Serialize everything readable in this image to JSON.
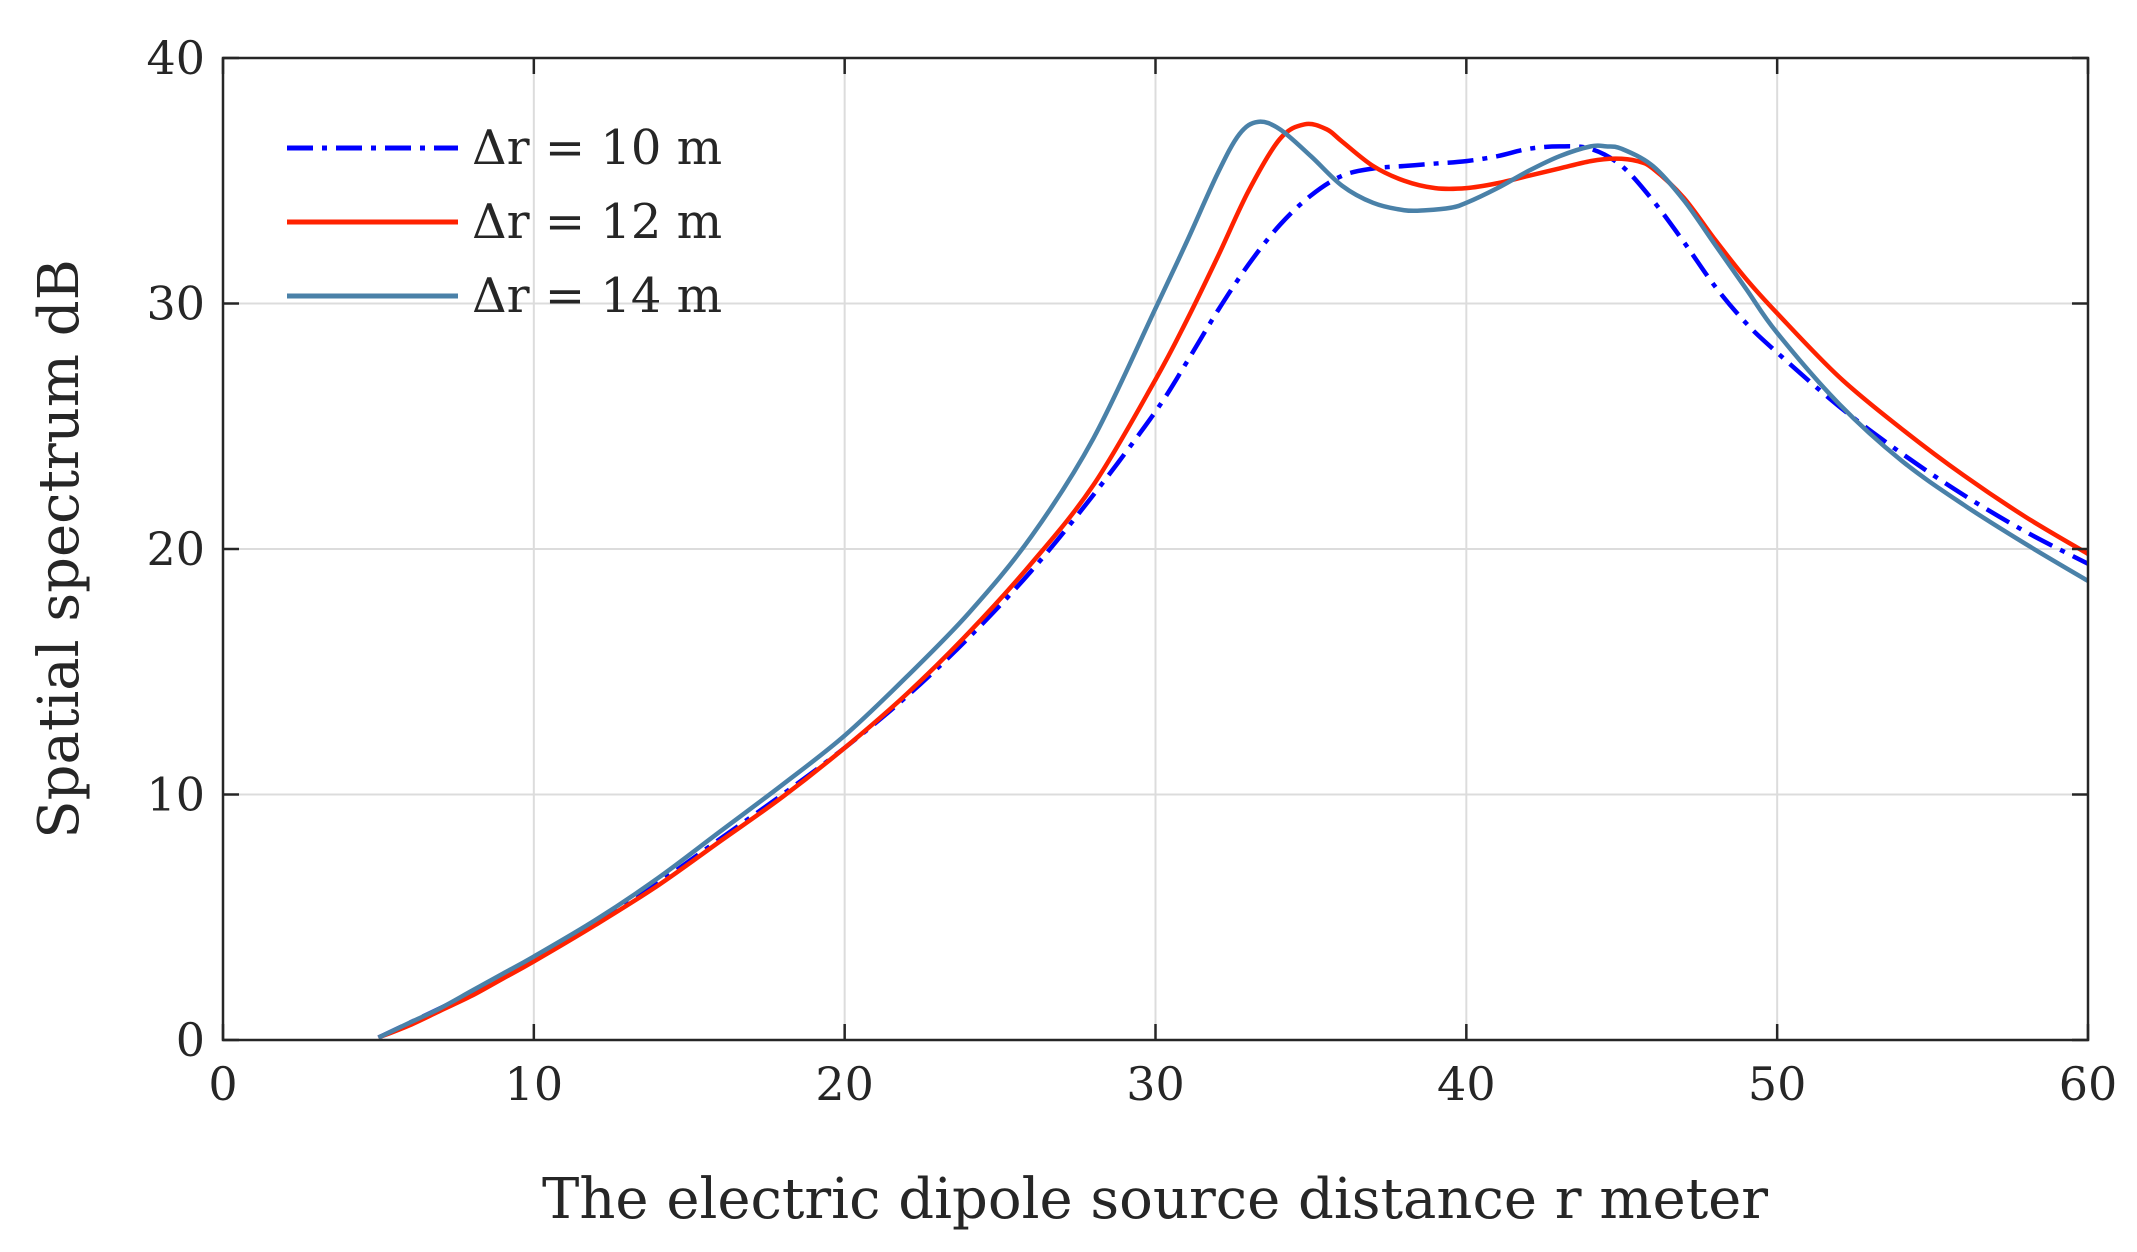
{
  "chart_data": {
    "type": "line",
    "title": "",
    "xlabel": "The electric dipole source distance r meter",
    "ylabel": "Spatial spectrum dB",
    "xlim": [
      0,
      60
    ],
    "ylim": [
      0,
      40
    ],
    "xticks": [
      0,
      10,
      20,
      30,
      40,
      50,
      60
    ],
    "yticks": [
      0,
      10,
      20,
      30,
      40
    ],
    "grid": true,
    "legend_position": "top-left",
    "series": [
      {
        "name": "Δr = 10 m",
        "color": "#0000ff",
        "dash": "dash-dot",
        "x": [
          5,
          6,
          7,
          8,
          9,
          10,
          12,
          14,
          16,
          18,
          20,
          22,
          24,
          26,
          28,
          30,
          31,
          32,
          33,
          34,
          35,
          36,
          37,
          38,
          39,
          40,
          41,
          42,
          43,
          44,
          45,
          46,
          47,
          48,
          49,
          50,
          52,
          54,
          56,
          58,
          60
        ],
        "y": [
          0.1,
          0.7,
          1.3,
          1.9,
          2.6,
          3.3,
          4.8,
          6.4,
          8.2,
          10.0,
          11.9,
          14.0,
          16.4,
          19.1,
          22.2,
          25.6,
          27.6,
          29.7,
          31.6,
          33.2,
          34.4,
          35.2,
          35.5,
          35.6,
          35.7,
          35.8,
          36.0,
          36.3,
          36.4,
          36.3,
          35.6,
          34.2,
          32.5,
          30.7,
          29.2,
          28.0,
          25.8,
          23.9,
          22.2,
          20.7,
          19.4
        ]
      },
      {
        "name": "Δr = 12 m",
        "color": "#ff2200",
        "dash": "solid",
        "x": [
          5,
          6,
          7,
          8,
          9,
          10,
          12,
          14,
          16,
          18,
          20,
          22,
          24,
          26,
          28,
          30,
          31,
          32,
          33,
          34,
          34.8,
          35.5,
          36,
          37,
          38,
          39,
          40,
          41,
          42,
          43,
          44,
          44.8,
          45.5,
          46,
          47,
          48,
          49,
          50,
          52,
          54,
          56,
          58,
          60
        ],
        "y": [
          0.1,
          0.6,
          1.2,
          1.8,
          2.5,
          3.2,
          4.7,
          6.3,
          8.1,
          9.9,
          11.9,
          14.1,
          16.6,
          19.4,
          22.6,
          26.9,
          29.3,
          31.9,
          34.6,
          36.7,
          37.3,
          37.1,
          36.6,
          35.6,
          35.0,
          34.7,
          34.7,
          34.9,
          35.2,
          35.5,
          35.8,
          35.9,
          35.8,
          35.5,
          34.3,
          32.6,
          31.0,
          29.6,
          27.0,
          24.9,
          23.0,
          21.3,
          19.8
        ]
      },
      {
        "name": "Δr = 14 m",
        "color": "#4a81a8",
        "dash": "solid",
        "x": [
          5,
          6,
          7,
          8,
          9,
          10,
          12,
          14,
          16,
          18,
          20,
          22,
          24,
          26,
          28,
          30,
          31,
          32,
          32.7,
          33.3,
          34,
          35,
          36,
          37,
          38,
          38.7,
          39.5,
          40,
          41,
          42,
          43,
          44,
          44.5,
          45,
          46,
          47,
          48,
          49,
          50,
          52,
          54,
          56,
          58,
          60
        ],
        "y": [
          0.1,
          0.7,
          1.3,
          2.0,
          2.7,
          3.4,
          4.9,
          6.6,
          8.5,
          10.4,
          12.4,
          14.8,
          17.4,
          20.5,
          24.5,
          29.8,
          32.5,
          35.3,
          36.9,
          37.4,
          37.1,
          36.0,
          34.8,
          34.1,
          33.8,
          33.8,
          33.9,
          34.1,
          34.7,
          35.4,
          36.0,
          36.4,
          36.4,
          36.3,
          35.6,
          34.2,
          32.4,
          30.6,
          28.8,
          25.9,
          23.6,
          21.8,
          20.2,
          18.7
        ]
      }
    ]
  }
}
